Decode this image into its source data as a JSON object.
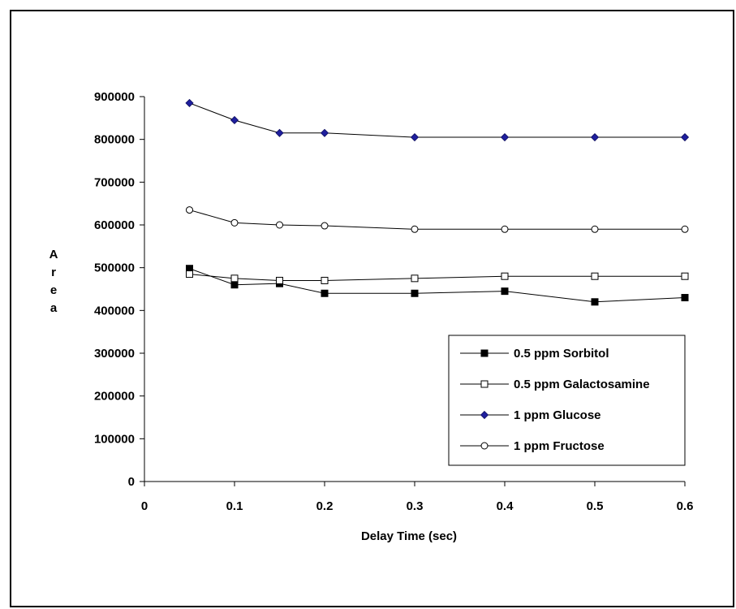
{
  "chart_data": {
    "type": "line",
    "title": "",
    "xlabel": "Delay Time (sec)",
    "ylabel": "Area",
    "xlim": [
      0,
      0.6
    ],
    "ylim": [
      0,
      900000
    ],
    "x_ticks": [
      0,
      0.1,
      0.2,
      0.3,
      0.4,
      0.5,
      0.6
    ],
    "x_tick_labels": [
      "0",
      "0.1",
      "0.2",
      "0.3",
      "0.4",
      "0.5",
      "0.6"
    ],
    "y_ticks": [
      0,
      100000,
      200000,
      300000,
      400000,
      500000,
      600000,
      700000,
      800000,
      900000
    ],
    "y_tick_labels": [
      "0",
      "100000",
      "200000",
      "300000",
      "400000",
      "500000",
      "600000",
      "700000",
      "800000",
      "900000"
    ],
    "grid": false,
    "legend_position": "bottom-right",
    "x": [
      0.05,
      0.1,
      0.15,
      0.2,
      0.3,
      0.4,
      0.5,
      0.6
    ],
    "series": [
      {
        "name": "0.5 ppm Sorbitol",
        "marker": "filled-square",
        "color": "#000000",
        "values": [
          498000,
          460000,
          463000,
          440000,
          440000,
          445000,
          420000,
          430000
        ]
      },
      {
        "name": "0.5 ppm Galactosamine",
        "marker": "open-square",
        "color": "#000000",
        "values": [
          485000,
          475000,
          470000,
          470000,
          475000,
          480000,
          480000,
          480000
        ]
      },
      {
        "name": "1 ppm Glucose",
        "marker": "filled-diamond",
        "color": "#1f1f9e",
        "values": [
          885000,
          845000,
          815000,
          815000,
          805000,
          805000,
          805000,
          805000
        ]
      },
      {
        "name": "1 ppm Fructose",
        "marker": "open-circle",
        "color": "#000000",
        "values": [
          635000,
          605000,
          600000,
          598000,
          590000,
          590000,
          590000,
          590000
        ]
      }
    ]
  }
}
